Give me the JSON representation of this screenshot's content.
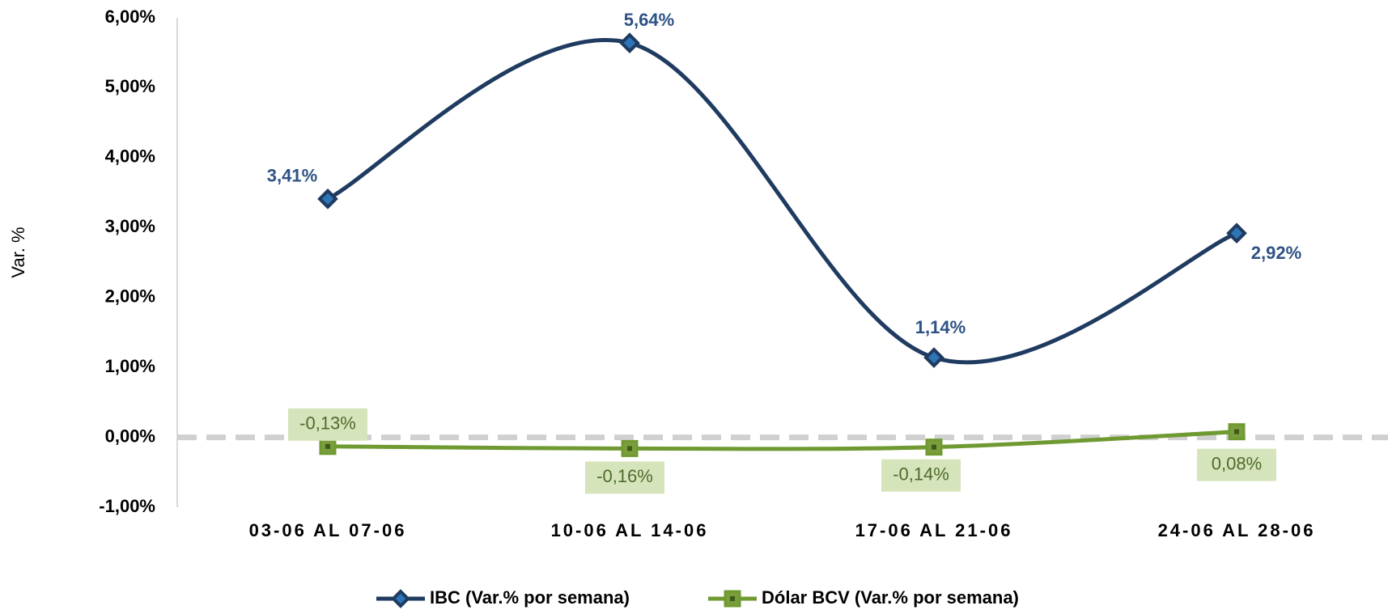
{
  "chart_data": {
    "type": "line",
    "y_axis_label": "Var. %",
    "categories": [
      "03-06 AL 07-06",
      "10-06 AL 14-06",
      "17-06 AL 21-06",
      "24-06 AL 28-06"
    ],
    "series": [
      {
        "name": "IBC (Var.% por semana)",
        "color": "#1f3b60",
        "label_color": "#2e5285",
        "marker": "diamond",
        "values": [
          3.41,
          5.64,
          1.14,
          2.92
        ],
        "value_labels": [
          "3,41%",
          "5,64%",
          "1,14%",
          "2,92%"
        ]
      },
      {
        "name": "Dólar BCV (Var.% por semana)",
        "color": "#6f9a32",
        "label_color": "#4f6b2a",
        "marker": "square",
        "values": [
          -0.13,
          -0.16,
          -0.14,
          0.08
        ],
        "value_labels": [
          "-0,13%",
          "-0,16%",
          "-0,14%",
          "0,08%"
        ]
      }
    ],
    "ylim": [
      -1,
      6
    ],
    "yticks": [
      {
        "value": -1,
        "label": "-1,00%"
      },
      {
        "value": 0,
        "label": "0,00%"
      },
      {
        "value": 1,
        "label": "1,00%"
      },
      {
        "value": 2,
        "label": "2,00%"
      },
      {
        "value": 3,
        "label": "3,00%"
      },
      {
        "value": 4,
        "label": "4,00%"
      },
      {
        "value": 5,
        "label": "5,00%"
      },
      {
        "value": 6,
        "label": "6,00%"
      }
    ],
    "smooth": true,
    "legend": "bottom"
  }
}
